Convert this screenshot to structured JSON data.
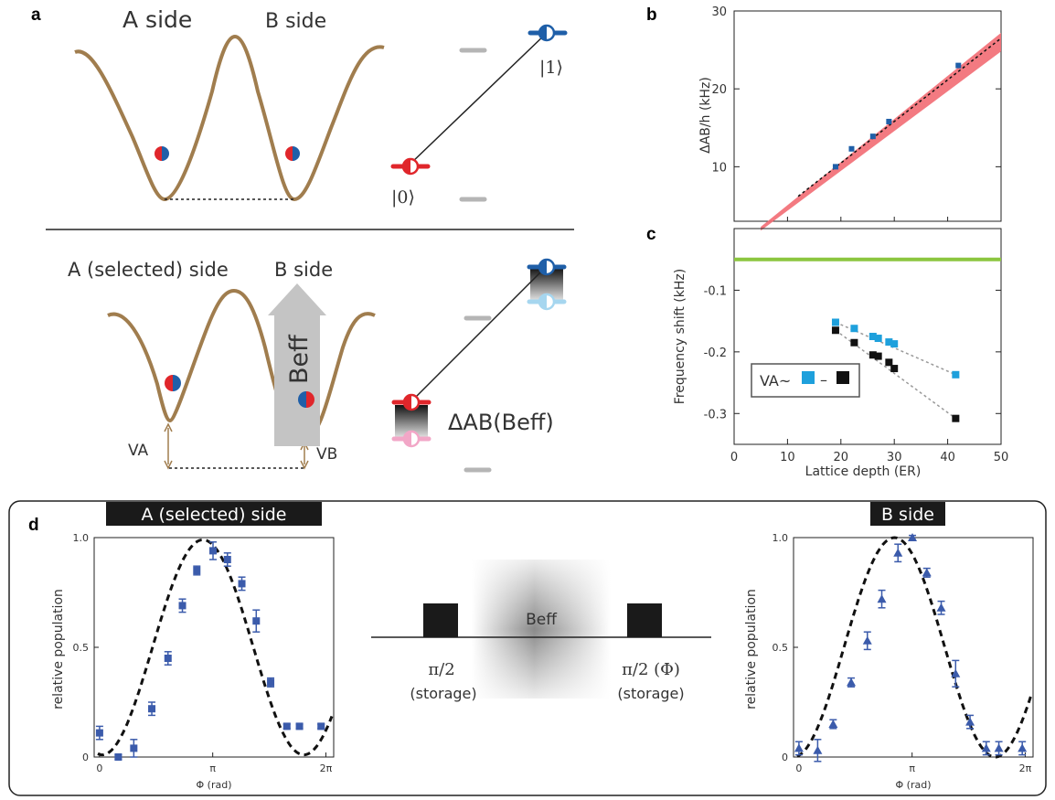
{
  "panel_letters": {
    "a": "a",
    "b": "b",
    "c": "c",
    "d": "d"
  },
  "panel_a": {
    "top": {
      "left_label": "A side",
      "right_label": "B side",
      "state0": "|0⟩",
      "state1": "|1⟩"
    },
    "bottom": {
      "left_label": "A (selected) side",
      "right_label": "B side",
      "arrow_label": "Beff",
      "va": "VA",
      "vb": "VB",
      "delta_label": "ΔAB(Beff)"
    }
  },
  "panel_d": {
    "left_title": "A (selected) side",
    "right_title": "B side",
    "seq_left_pulse": "π/2",
    "seq_left_sub": "(storage)",
    "seq_right_pulse": "π/2 (Φ)",
    "seq_right_sub": "(storage)",
    "seq_field": "Beff"
  },
  "colors": {
    "potential": "#a07d4e",
    "red": "#e0262b",
    "blue": "#1f5fa8",
    "pink": "#f2a7c7",
    "lightblue": "#a6d6ef",
    "light_blue_sq": "#1ea0dc",
    "green": "#8cc63f",
    "salmon": "#f26c73",
    "gray": "#b5b5b5"
  },
  "chart_data": [
    {
      "id": "b",
      "type": "scatter",
      "ylabel": "ΔAB/h (kHz)",
      "xlim": [
        0,
        50
      ],
      "ylim": [
        3,
        30
      ],
      "yticks": [
        10,
        20,
        30
      ],
      "points": {
        "x": [
          19,
          22,
          26,
          29,
          42
        ],
        "y": [
          10.0,
          12.3,
          13.9,
          15.8,
          23.0
        ]
      },
      "fit_line": {
        "x": [
          12,
          50
        ],
        "y": [
          6.2,
          26.5
        ]
      },
      "band": {
        "x": [
          5,
          50
        ],
        "y_low": [
          1.8,
          24.8
        ],
        "y_high": [
          2.3,
          27.2
        ]
      }
    },
    {
      "id": "c",
      "type": "scatter",
      "xlabel": "Lattice depth (ER)",
      "ylabel": "Frequency shift (kHz)",
      "xlim": [
        0,
        50
      ],
      "ylim": [
        -0.35,
        0.0
      ],
      "xticks": [
        0,
        10,
        20,
        30,
        40,
        50
      ],
      "yticks": [
        -0.1,
        -0.2,
        -0.3
      ],
      "ytick_labels": [
        "-0.1",
        "-0.2",
        "-0.3"
      ],
      "xtick_labels": [
        "0",
        "10",
        "20",
        "30",
        "40",
        "50"
      ],
      "legend": "VA~",
      "legend_dash": "–",
      "horizontal_line": -0.05,
      "series": [
        {
          "x": [
            19,
            22.5,
            26,
            27,
            29,
            30,
            41.5
          ],
          "y": [
            -0.152,
            -0.162,
            -0.175,
            -0.178,
            -0.184,
            -0.187,
            -0.237
          ]
        },
        {
          "x": [
            19,
            22.5,
            26,
            27,
            29,
            30,
            41.5
          ],
          "y": [
            -0.165,
            -0.185,
            -0.205,
            -0.207,
            -0.217,
            -0.227,
            -0.308
          ]
        }
      ]
    },
    {
      "id": "d-left",
      "type": "scatter",
      "xlabel": "Φ (rad)",
      "ylabel": "relative population",
      "xlim": [
        -0.15,
        6.5
      ],
      "ylim": [
        0,
        1.0
      ],
      "xtick_labels": [
        "0",
        "π",
        "2π"
      ],
      "ytick_labels": [
        "0",
        "0.5",
        "1.0"
      ],
      "points": {
        "x": [
          0.0,
          0.52,
          0.95,
          1.45,
          1.9,
          2.3,
          2.7,
          3.15,
          3.55,
          3.95,
          4.35,
          4.75,
          5.2,
          5.55,
          6.15
        ],
        "y": [
          0.11,
          0.0,
          0.04,
          0.22,
          0.45,
          0.69,
          0.85,
          0.94,
          0.9,
          0.79,
          0.62,
          0.34,
          0.14,
          0.14,
          0.14
        ],
        "err": [
          0.03,
          0.01,
          0.04,
          0.03,
          0.03,
          0.03,
          0.02,
          0.04,
          0.03,
          0.03,
          0.05,
          0.02,
          0.01,
          0.01,
          0.01
        ]
      }
    },
    {
      "id": "d-right",
      "type": "scatter",
      "xlabel": "Φ (rad)",
      "ylabel": "relative population",
      "xlim": [
        -0.15,
        6.5
      ],
      "ylim": [
        0,
        1.0
      ],
      "xtick_labels": [
        "0",
        "π",
        "2π"
      ],
      "ytick_labels": [
        "0",
        "0.5",
        "1.0"
      ],
      "points": {
        "x": [
          0.0,
          0.52,
          0.95,
          1.45,
          1.9,
          2.3,
          2.75,
          3.15,
          3.55,
          3.95,
          4.35,
          4.75,
          5.2,
          5.55,
          6.2
        ],
        "y": [
          0.04,
          0.03,
          0.15,
          0.34,
          0.53,
          0.72,
          0.93,
          1.0,
          0.84,
          0.68,
          0.38,
          0.16,
          0.04,
          0.04,
          0.04
        ],
        "err": [
          0.03,
          0.05,
          0.02,
          0.02,
          0.04,
          0.04,
          0.04,
          0.01,
          0.02,
          0.03,
          0.06,
          0.03,
          0.03,
          0.03,
          0.03
        ]
      }
    }
  ]
}
